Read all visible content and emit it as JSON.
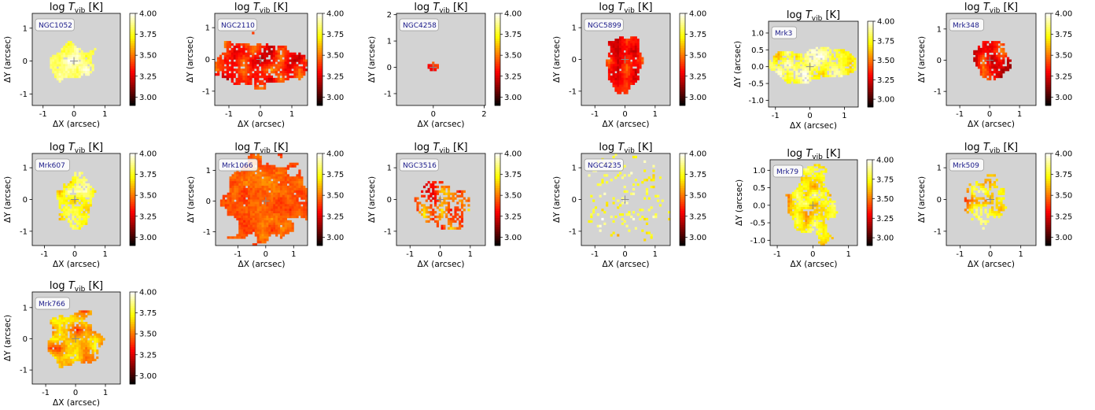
{
  "figure": {
    "quantity_symbol": "T",
    "quantity_subscript": "vib",
    "quantity_prefix": "log",
    "quantity_unit": "[K]",
    "xlabel": "ΔX (arcsec)",
    "ylabel": "ΔY (arcsec)",
    "colormap": "hot",
    "background": "#d3d3d3",
    "colorbar": {
      "range": [
        2.9,
        4.0
      ],
      "ticks": [
        "4.00",
        "3.75",
        "3.50",
        "3.25",
        "3.00"
      ]
    }
  },
  "chart_data": [
    {
      "type": "heatmap",
      "title": "log T_vib [K]",
      "galaxy": "NGC1052",
      "xlim": [
        -1.35,
        1.5
      ],
      "ylim": [
        -1.35,
        1.45
      ],
      "xticks": [
        "-1",
        "0",
        "1"
      ],
      "yticks": [
        "1",
        "0",
        "-1"
      ],
      "xtick_values": [
        -1,
        0,
        1
      ],
      "ytick_values": [
        1,
        0,
        -1
      ],
      "emission": {
        "center": [
          0.0,
          0.0
        ],
        "radius": [
          0.65,
          0.6
        ],
        "mean_logT": 3.85,
        "spread": 0.15,
        "fill": 0.95
      }
    },
    {
      "type": "heatmap",
      "title": "log T_vib [K]",
      "galaxy": "NGC2110",
      "xlim": [
        -1.45,
        1.5
      ],
      "ylim": [
        -1.45,
        1.45
      ],
      "xticks": [
        "-1",
        "0",
        "1"
      ],
      "yticks": [
        "1",
        "0",
        "-1"
      ],
      "xtick_values": [
        -1,
        0,
        1
      ],
      "ytick_values": [
        1,
        0,
        -1
      ],
      "emission": {
        "center": [
          0.0,
          -0.1
        ],
        "radius": [
          1.45,
          0.75
        ],
        "mean_logT": 3.35,
        "spread": 0.2,
        "fill": 0.85
      }
    },
    {
      "type": "heatmap",
      "title": "log T_vib [K]",
      "galaxy": "NGC4258",
      "xlim": [
        -1.45,
        2.05
      ],
      "ylim": [
        -1.45,
        2.05
      ],
      "xticks": [
        "0",
        "2"
      ],
      "yticks": [
        "2",
        "1",
        "0",
        "-1"
      ],
      "xtick_values": [
        0,
        2
      ],
      "ytick_values": [
        2,
        1,
        0,
        -1
      ],
      "emission": {
        "center": [
          0.0,
          0.0
        ],
        "radius": [
          0.22,
          0.16
        ],
        "mean_logT": 3.4,
        "spread": 0.3,
        "fill": 1.0
      }
    },
    {
      "type": "heatmap",
      "title": "log T_vib [K]",
      "galaxy": "NGC5899",
      "xlim": [
        -1.45,
        1.5
      ],
      "ylim": [
        -1.45,
        1.45
      ],
      "xticks": [
        "-1",
        "0",
        "1"
      ],
      "yticks": [
        "1",
        "0",
        "-1"
      ],
      "xtick_values": [
        -1,
        0,
        1
      ],
      "ytick_values": [
        1,
        0,
        -1
      ],
      "emission": {
        "center": [
          0.0,
          -0.05
        ],
        "radius": [
          0.55,
          0.85
        ],
        "mean_logT": 3.35,
        "spread": 0.15,
        "fill": 0.95
      }
    },
    {
      "type": "heatmap",
      "title": "log T_vib [K]",
      "galaxy": "Mrk3",
      "xlim": [
        -1.2,
        1.4
      ],
      "ylim": [
        -1.2,
        1.35
      ],
      "xticks": [
        "-1",
        "0",
        "1"
      ],
      "yticks": [
        "1.0",
        "0.5",
        "0.0",
        "-0.5",
        "-1.0"
      ],
      "xtick_values": [
        -1,
        0,
        1
      ],
      "ytick_values": [
        1,
        0.5,
        0,
        -0.5,
        -1
      ],
      "emission": {
        "center": [
          0.1,
          0.05
        ],
        "radius": [
          1.25,
          0.5
        ],
        "mean_logT": 3.8,
        "spread": 0.2,
        "fill": 0.85
      }
    },
    {
      "type": "heatmap",
      "title": "log T_vib [K]",
      "galaxy": "Mrk348",
      "xlim": [
        -1.45,
        1.55
      ],
      "ylim": [
        -1.45,
        1.5
      ],
      "xticks": [
        "-1",
        "0",
        "1"
      ],
      "yticks": [
        "1",
        "0",
        "-1"
      ],
      "xtick_values": [
        -1,
        0,
        1
      ],
      "ytick_values": [
        1,
        0,
        -1
      ],
      "emission": {
        "center": [
          0.0,
          0.0
        ],
        "radius": [
          0.6,
          0.6
        ],
        "mean_logT": 3.35,
        "spread": 0.2,
        "fill": 0.85
      }
    },
    {
      "type": "heatmap",
      "title": "log T_vib [K]",
      "galaxy": "Mrk607",
      "xlim": [
        -1.4,
        1.5
      ],
      "ylim": [
        -1.45,
        1.45
      ],
      "xticks": [
        "-1",
        "0",
        "1"
      ],
      "yticks": [
        "1",
        "0",
        "-1"
      ],
      "xtick_values": [
        -1,
        0,
        1
      ],
      "ytick_values": [
        1,
        0,
        -1
      ],
      "emission": {
        "center": [
          0.0,
          0.0
        ],
        "radius": [
          0.55,
          0.75
        ],
        "mean_logT": 3.75,
        "spread": 0.2,
        "fill": 0.75
      }
    },
    {
      "type": "heatmap",
      "title": "log T_vib [K]",
      "galaxy": "Mrk1066",
      "xlim": [
        -1.8,
        1.5
      ],
      "ylim": [
        -1.45,
        1.55
      ],
      "xticks": [
        "-1",
        "0",
        "1"
      ],
      "yticks": [
        "1",
        "0",
        "-1"
      ],
      "xtick_values": [
        -1,
        0,
        1
      ],
      "ytick_values": [
        1,
        0,
        -1
      ],
      "emission": {
        "center": [
          -0.05,
          0.0
        ],
        "radius": [
          1.45,
          1.35
        ],
        "mean_logT": 3.45,
        "spread": 0.08,
        "fill": 0.98
      }
    },
    {
      "type": "heatmap",
      "title": "log T_vib [K]",
      "galaxy": "NGC3516",
      "xlim": [
        -1.45,
        1.5
      ],
      "ylim": [
        -1.45,
        1.45
      ],
      "xticks": [
        "-1",
        "0",
        "1"
      ],
      "yticks": [
        "1",
        "0",
        "-1"
      ],
      "xtick_values": [
        -1,
        0,
        1
      ],
      "ytick_values": [
        1,
        0,
        -1
      ],
      "emission": {
        "center": [
          0.1,
          -0.2
        ],
        "radius": [
          0.75,
          0.7
        ],
        "mean_logT": 3.45,
        "spread": 0.25,
        "fill": 0.55
      }
    },
    {
      "type": "heatmap",
      "title": "log T_vib [K]",
      "galaxy": "NGC4235",
      "xlim": [
        -1.45,
        1.5
      ],
      "ylim": [
        -1.45,
        1.45
      ],
      "xticks": [
        "-1",
        "0",
        "1"
      ],
      "yticks": [
        "1",
        "0",
        "-1"
      ],
      "xtick_values": [
        -1,
        0,
        1
      ],
      "ytick_values": [
        1,
        0,
        -1
      ],
      "emission": {
        "center": [
          0.0,
          0.0
        ],
        "radius": [
          1.4,
          1.4
        ],
        "mean_logT": 3.8,
        "spread": 0.2,
        "fill": 0.12
      }
    },
    {
      "type": "heatmap",
      "title": "log T_vib [K]",
      "galaxy": "Mrk79",
      "xlim": [
        -1.2,
        1.25
      ],
      "ylim": [
        -1.15,
        1.3
      ],
      "xticks": [
        "-1",
        "0",
        "1"
      ],
      "yticks": [
        "1.0",
        "0.5",
        "0.0",
        "-0.5",
        "-1.0"
      ],
      "xtick_values": [
        -1,
        0,
        1
      ],
      "ytick_values": [
        1,
        0.5,
        0,
        -0.5,
        -1
      ],
      "emission": {
        "center": [
          0.0,
          -0.05
        ],
        "radius": [
          0.6,
          0.95
        ],
        "mean_logT": 3.7,
        "spread": 0.2,
        "fill": 0.85
      }
    },
    {
      "type": "heatmap",
      "title": "log T_vib [K]",
      "galaxy": "Mrk509",
      "xlim": [
        -1.45,
        1.5
      ],
      "ylim": [
        -1.45,
        1.45
      ],
      "xticks": [
        "-1",
        "0",
        "1"
      ],
      "yticks": [
        "1",
        "0",
        "-1"
      ],
      "xtick_values": [
        -1,
        0,
        1
      ],
      "ytick_values": [
        1,
        0,
        -1
      ],
      "emission": {
        "center": [
          -0.1,
          0.0
        ],
        "radius": [
          0.7,
          0.75
        ],
        "mean_logT": 3.65,
        "spread": 0.25,
        "fill": 0.55
      }
    },
    {
      "type": "heatmap",
      "title": "log T_vib [K]",
      "galaxy": "Mrk766",
      "xlim": [
        -1.45,
        1.5
      ],
      "ylim": [
        -1.45,
        1.5
      ],
      "xticks": [
        "-1",
        "0",
        "1"
      ],
      "yticks": [
        "1",
        "0",
        "-1"
      ],
      "xtick_values": [
        -1,
        0,
        1
      ],
      "ytick_values": [
        1,
        0,
        -1
      ],
      "emission": {
        "center": [
          0.0,
          -0.05
        ],
        "radius": [
          0.95,
          0.85
        ],
        "mean_logT": 3.55,
        "spread": 0.2,
        "fill": 0.9
      }
    }
  ]
}
